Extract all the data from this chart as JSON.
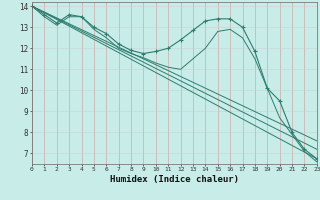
{
  "xlabel": "Humidex (Indice chaleur)",
  "background_color": "#c8ece8",
  "grid_color": "#b0b0b0",
  "line_color": "#2e7d6e",
  "lines": [
    {
      "x": [
        0,
        1,
        2,
        3,
        4,
        5,
        6,
        7,
        8,
        9,
        10,
        11,
        12,
        13,
        14,
        15,
        16,
        17,
        18,
        19,
        20,
        21,
        22,
        23
      ],
      "y": [
        14.0,
        13.6,
        13.2,
        13.6,
        13.5,
        13.0,
        12.7,
        12.2,
        11.9,
        11.75,
        11.85,
        12.0,
        12.4,
        12.85,
        13.3,
        13.4,
        13.4,
        13.0,
        11.85,
        10.1,
        9.5,
        8.0,
        7.2,
        6.75
      ],
      "has_markers": true
    },
    {
      "x": [
        0,
        1,
        2,
        3,
        4,
        5,
        6,
        7,
        8,
        9,
        10,
        11,
        12,
        13,
        14,
        15,
        16,
        17,
        18,
        19,
        20,
        21,
        22,
        23
      ],
      "y": [
        14.0,
        13.5,
        13.1,
        13.5,
        13.5,
        12.9,
        12.5,
        12.0,
        11.75,
        11.55,
        11.3,
        11.1,
        11.0,
        11.5,
        12.0,
        12.8,
        12.9,
        12.5,
        11.5,
        10.1,
        8.7,
        7.9,
        7.1,
        6.6
      ],
      "has_markers": false
    },
    {
      "x": [
        0,
        23
      ],
      "y": [
        14.0,
        6.75
      ],
      "has_markers": false
    },
    {
      "x": [
        0,
        23
      ],
      "y": [
        14.0,
        7.2
      ],
      "has_markers": false
    },
    {
      "x": [
        0,
        23
      ],
      "y": [
        14.0,
        7.6
      ],
      "has_markers": false
    }
  ],
  "yticks": [
    7,
    8,
    9,
    10,
    11,
    12,
    13,
    14
  ],
  "xticks": [
    0,
    1,
    2,
    3,
    4,
    5,
    6,
    7,
    8,
    9,
    10,
    11,
    12,
    13,
    14,
    15,
    16,
    17,
    18,
    19,
    20,
    21,
    22,
    23
  ],
  "xlim": [
    0,
    23
  ],
  "ylim": [
    6.5,
    14.2
  ]
}
